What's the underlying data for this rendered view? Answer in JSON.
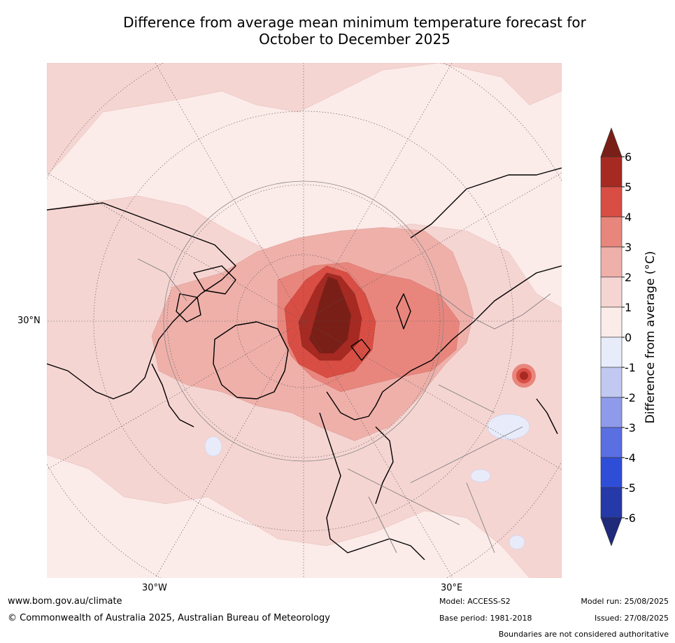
{
  "title": {
    "line1": "Difference from average mean minimum temperature forecast for",
    "line2": "October to December 2025"
  },
  "map": {
    "projection": "north polar stereographic",
    "region": "Northern Hemisphere",
    "lon_labels": [
      "30°W",
      "30°E"
    ],
    "lat_labels": [
      "30°N"
    ],
    "gridlines": true
  },
  "colorbar": {
    "label": "Difference from average (°C)",
    "ticks": [
      "6",
      "5",
      "4",
      "3",
      "2",
      "1",
      "0",
      "-1",
      "-2",
      "-3",
      "-4",
      "-5",
      "-6"
    ],
    "colors": {
      "above_6": "#7a1f17",
      "5_to_6": "#a62a22",
      "4_to_5": "#d94e44",
      "3_to_4": "#e8867d",
      "2_to_3": "#efb0aa",
      "1_to_2": "#f5d5d2",
      "0_to_1": "#fbebe9",
      "m1_to_0": "#e8ecfa",
      "m2_to_m1": "#c1c9f1",
      "m3_to_m2": "#8e9bea",
      "m4_to_m3": "#5a6fe2",
      "m5_to_m4": "#2f4ed8",
      "m6_to_m5": "#2639a8",
      "below_m6": "#1f2a7a"
    }
  },
  "footer": {
    "url": "www.bom.gov.au/climate",
    "copyright": "© Commonwealth of Australia 2025, Australian Bureau of Meteorology",
    "model": "Model: ACCESS-S2",
    "base_period": "Base period: 1981-2018",
    "model_run": "Model run: 25/08/2025",
    "issued": "Issued: 27/08/2025",
    "disclaimer": "Boundaries are not considered authoritative"
  }
}
